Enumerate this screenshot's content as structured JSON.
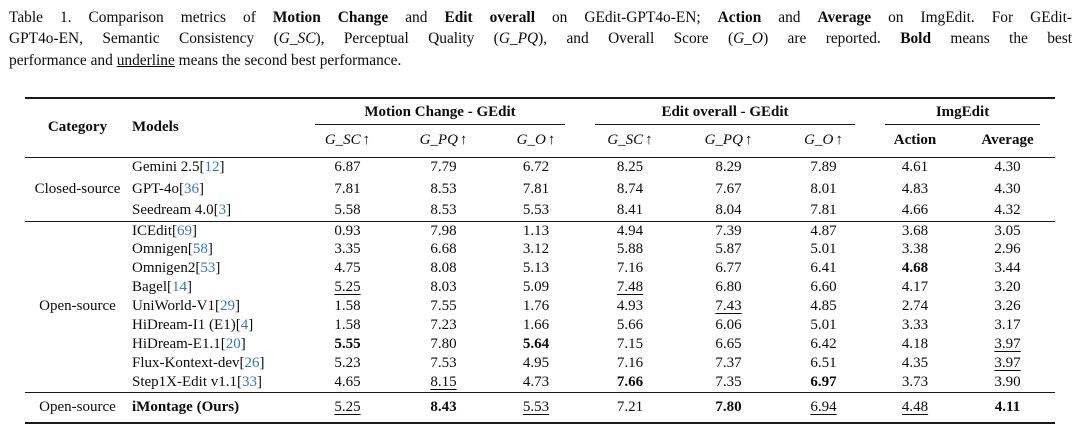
{
  "colors": {
    "citation_blue": "#3576c0",
    "text": "#0c0c0c"
  },
  "caption": {
    "lines": [
      [
        {
          "t": "Table 1. Comparison metrics of "
        },
        {
          "t": "Motion Change",
          "b": 1
        },
        {
          "t": " and "
        },
        {
          "t": "Edit overall",
          "b": 1
        },
        {
          "t": " on GEdit-GPT4o-EN; "
        },
        {
          "t": "Action",
          "b": 1
        },
        {
          "t": " and "
        },
        {
          "t": "Average",
          "b": 1
        },
        {
          "t": " on ImgEdit. For GEdit-"
        }
      ],
      [
        {
          "t": "GPT4o-EN, Semantic Consistency ("
        },
        {
          "t": "G_SC",
          "i": 1
        },
        {
          "t": "), Perceptual Quality ("
        },
        {
          "t": "G_PQ",
          "i": 1
        },
        {
          "t": "), and Overall Score ("
        },
        {
          "t": "G_O",
          "i": 1
        },
        {
          "t": ") are reported. "
        },
        {
          "t": "Bold",
          "b": 1
        },
        {
          "t": " means the best"
        }
      ],
      [
        {
          "t": "performance and "
        },
        {
          "t": "underline",
          "u": 1
        },
        {
          "t": " means the second best performance."
        }
      ]
    ]
  },
  "table": {
    "meta": {
      "cite_open": "[",
      "cite_close": "]"
    },
    "header": {
      "category": "Category",
      "models": "Models"
    },
    "groups": [
      {
        "label": "Motion Change - GEdit",
        "cols": [
          {
            "m": "G_SC",
            "a": "↑"
          },
          {
            "m": "G_PQ",
            "a": "↑"
          },
          {
            "m": "G_O",
            "a": "↑"
          }
        ]
      },
      {
        "label": "Edit overall - GEdit",
        "cols": [
          {
            "m": "G_SC",
            "a": "↑"
          },
          {
            "m": "G_PQ",
            "a": "↑"
          },
          {
            "m": "G_O",
            "a": "↑"
          }
        ]
      },
      {
        "label": "ImgEdit",
        "cols": [
          {
            "t": "Action"
          },
          {
            "t": "Average"
          }
        ]
      }
    ],
    "sections": [
      {
        "category": "Closed-source",
        "rows": [
          {
            "model": {
              "name": "Gemini 2.5",
              "cite": "12"
            },
            "cells": [
              {
                "v": "6.87"
              },
              {
                "v": "7.79"
              },
              {
                "v": "6.72"
              },
              {
                "v": "8.25"
              },
              {
                "v": "8.29"
              },
              {
                "v": "7.89"
              },
              {
                "v": "4.61"
              },
              {
                "v": "4.30"
              }
            ]
          },
          {
            "model": {
              "name": "GPT-4o",
              "cite": "36"
            },
            "cells": [
              {
                "v": "7.81"
              },
              {
                "v": "8.53"
              },
              {
                "v": "7.81"
              },
              {
                "v": "8.74"
              },
              {
                "v": "7.67"
              },
              {
                "v": "8.01"
              },
              {
                "v": "4.83"
              },
              {
                "v": "4.30"
              }
            ]
          },
          {
            "model": {
              "name": "Seedream 4.0",
              "cite": "3"
            },
            "cells": [
              {
                "v": "5.58"
              },
              {
                "v": "8.53"
              },
              {
                "v": "5.53"
              },
              {
                "v": "8.41"
              },
              {
                "v": "8.04"
              },
              {
                "v": "7.81"
              },
              {
                "v": "4.66"
              },
              {
                "v": "4.32"
              }
            ]
          }
        ]
      },
      {
        "category": "Open-source",
        "rows": [
          {
            "model": {
              "name": "ICEdit",
              "cite": "69"
            },
            "cells": [
              {
                "v": "0.93"
              },
              {
                "v": "7.98"
              },
              {
                "v": "1.13"
              },
              {
                "v": "4.94"
              },
              {
                "v": "7.39"
              },
              {
                "v": "4.87"
              },
              {
                "v": "3.68"
              },
              {
                "v": "3.05"
              }
            ]
          },
          {
            "model": {
              "name": "Omnigen",
              "cite": "58"
            },
            "cells": [
              {
                "v": "3.35"
              },
              {
                "v": "6.68"
              },
              {
                "v": "3.12"
              },
              {
                "v": "5.88"
              },
              {
                "v": "5.87"
              },
              {
                "v": "5.01"
              },
              {
                "v": "3.38"
              },
              {
                "v": "2.96"
              }
            ]
          },
          {
            "model": {
              "name": "Omnigen2",
              "cite": "53"
            },
            "cells": [
              {
                "v": "4.75"
              },
              {
                "v": "8.08"
              },
              {
                "v": "5.13"
              },
              {
                "v": "7.16"
              },
              {
                "v": "6.77"
              },
              {
                "v": "6.41"
              },
              {
                "v": "4.68",
                "f": "b"
              },
              {
                "v": "3.44"
              }
            ]
          },
          {
            "model": {
              "name": "Bagel",
              "cite": "14"
            },
            "cells": [
              {
                "v": "5.25",
                "f": "u"
              },
              {
                "v": "8.03"
              },
              {
                "v": "5.09"
              },
              {
                "v": "7.48",
                "f": "u"
              },
              {
                "v": "6.80"
              },
              {
                "v": "6.60"
              },
              {
                "v": "4.17"
              },
              {
                "v": "3.20"
              }
            ]
          },
          {
            "model": {
              "name": "UniWorld-V1",
              "cite": "29"
            },
            "cells": [
              {
                "v": "1.58"
              },
              {
                "v": "7.55"
              },
              {
                "v": "1.76"
              },
              {
                "v": "4.93"
              },
              {
                "v": "7.43",
                "f": "u"
              },
              {
                "v": "4.85"
              },
              {
                "v": "2.74"
              },
              {
                "v": "3.26"
              }
            ]
          },
          {
            "model": {
              "name": "HiDream-I1 (E1)",
              "cite": "4"
            },
            "cells": [
              {
                "v": "1.58"
              },
              {
                "v": "7.23"
              },
              {
                "v": "1.66"
              },
              {
                "v": "5.66"
              },
              {
                "v": "6.06"
              },
              {
                "v": "5.01"
              },
              {
                "v": "3.33"
              },
              {
                "v": "3.17"
              }
            ]
          },
          {
            "model": {
              "name": "HiDream-E1.1",
              "cite": "20"
            },
            "cells": [
              {
                "v": "5.55",
                "f": "b"
              },
              {
                "v": "7.80"
              },
              {
                "v": "5.64",
                "f": "b"
              },
              {
                "v": "7.15"
              },
              {
                "v": "6.65"
              },
              {
                "v": "6.42"
              },
              {
                "v": "4.18"
              },
              {
                "v": "3.97",
                "f": "u"
              }
            ]
          },
          {
            "model": {
              "name": "Flux-Kontext-dev",
              "cite": "26"
            },
            "cells": [
              {
                "v": "5.23"
              },
              {
                "v": "7.53"
              },
              {
                "v": "4.95"
              },
              {
                "v": "7.16"
              },
              {
                "v": "7.37"
              },
              {
                "v": "6.51"
              },
              {
                "v": "4.35"
              },
              {
                "v": "3.97",
                "f": "u"
              }
            ]
          },
          {
            "model": {
              "name": "Step1X-Edit v1.1",
              "cite": "33"
            },
            "cells": [
              {
                "v": "4.65"
              },
              {
                "v": "8.15",
                "f": "u"
              },
              {
                "v": "4.73"
              },
              {
                "v": "7.66",
                "f": "b"
              },
              {
                "v": "7.35"
              },
              {
                "v": "6.97",
                "f": "b"
              },
              {
                "v": "3.73"
              },
              {
                "v": "3.90"
              }
            ]
          }
        ]
      },
      {
        "category": "Open-source",
        "rows": [
          {
            "model": {
              "name": "iMontage (Ours)",
              "bold": 1
            },
            "cells": [
              {
                "v": "5.25",
                "f": "u"
              },
              {
                "v": "8.43",
                "f": "b"
              },
              {
                "v": "5.53",
                "f": "u"
              },
              {
                "v": "7.21"
              },
              {
                "v": "7.80",
                "f": "b"
              },
              {
                "v": "6.94",
                "f": "u"
              },
              {
                "v": "4.48",
                "f": "u"
              },
              {
                "v": "4.11",
                "f": "b"
              }
            ]
          }
        ]
      }
    ]
  }
}
